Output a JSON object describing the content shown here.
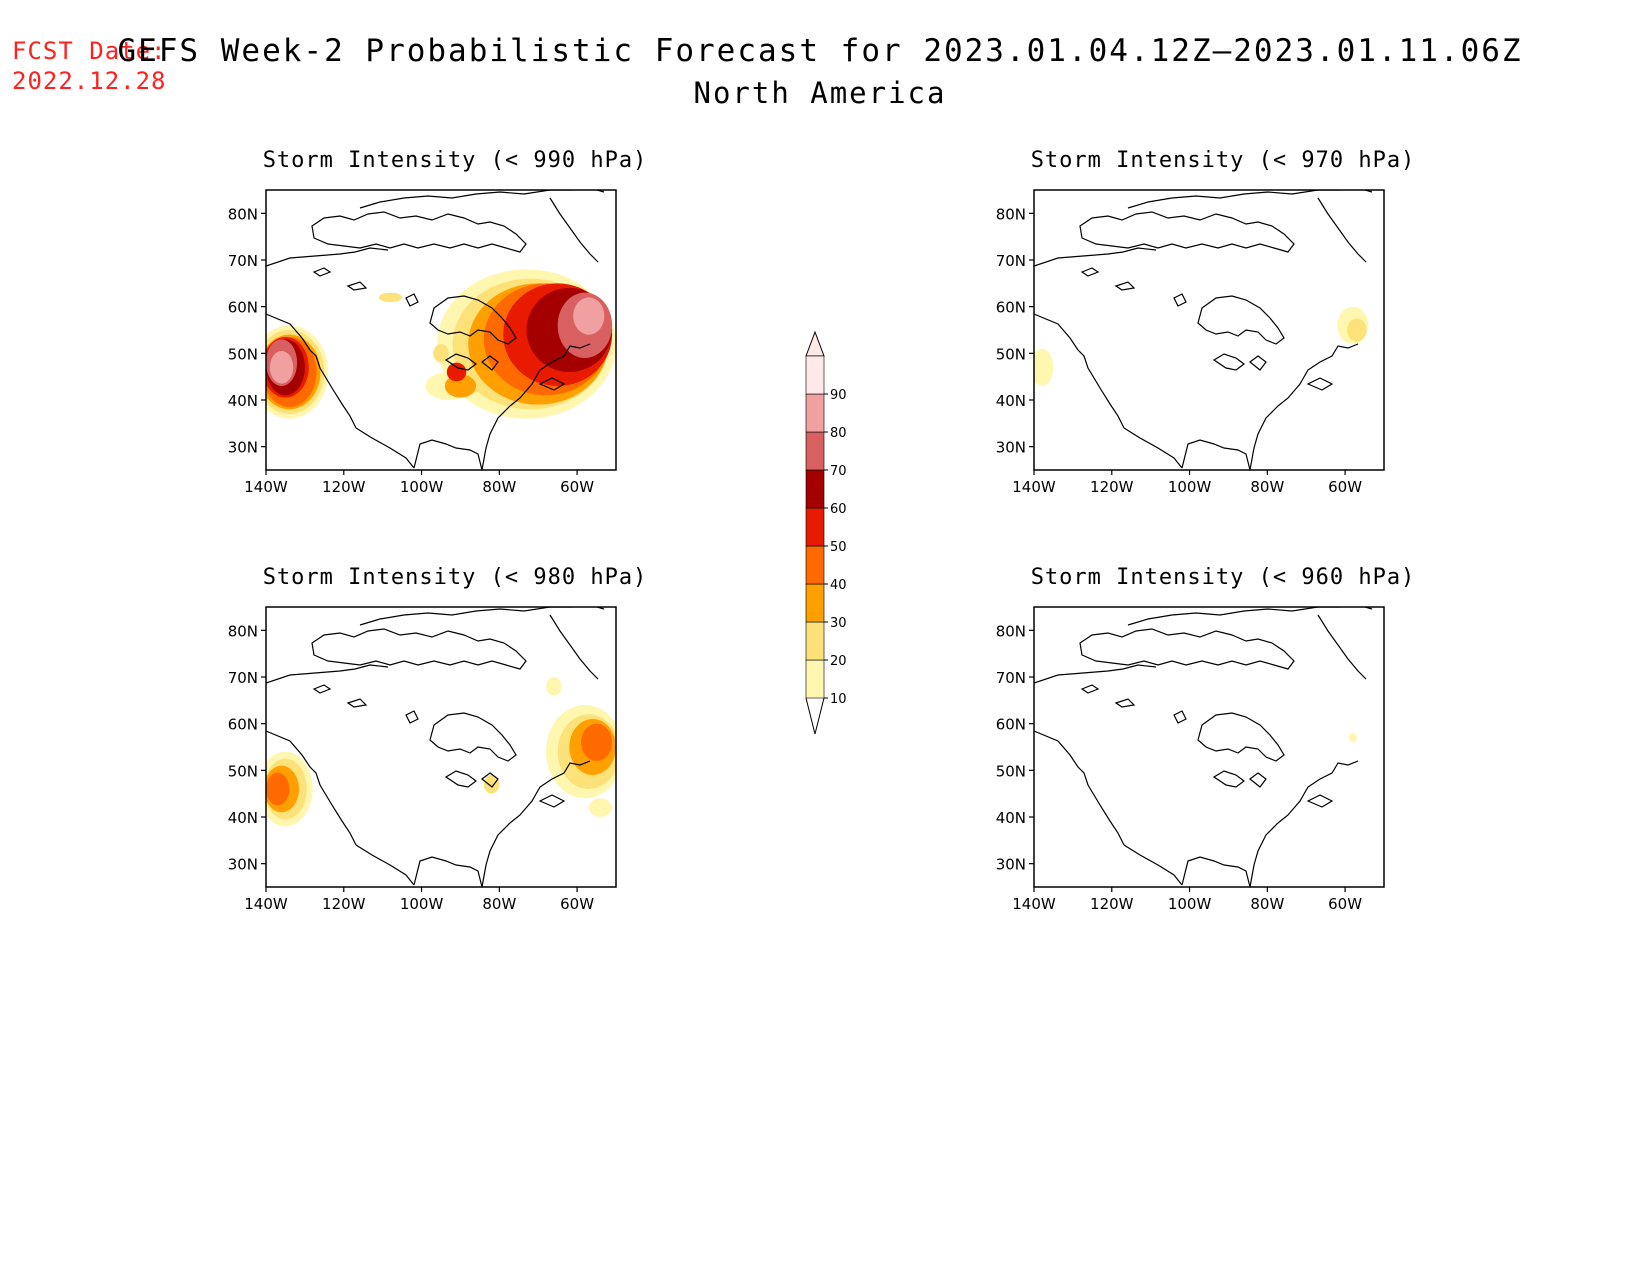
{
  "header": {
    "fcst_label": "FCST Date:",
    "fcst_date": "2022.12.28",
    "title": "GEFS Week-2 Probabilistic Forecast for 2023.01.04.12Z–2023.01.11.06Z",
    "region": "North America"
  },
  "panels": [
    {
      "id": "p990",
      "title": "Storm Intensity (< 990 hPa)"
    },
    {
      "id": "p970",
      "title": "Storm Intensity (< 970 hPa)"
    },
    {
      "id": "p980",
      "title": "Storm Intensity (< 980 hPa)"
    },
    {
      "id": "p960",
      "title": "Storm Intensity (< 960 hPa)"
    }
  ],
  "axes": {
    "lat_labels": [
      "80N",
      "70N",
      "60N",
      "50N",
      "40N",
      "30N"
    ],
    "lon_labels": [
      "140W",
      "120W",
      "100W",
      "80W",
      "60W"
    ],
    "lat_range": [
      25,
      85
    ],
    "lon_range": [
      -140,
      -50
    ]
  },
  "colorbar": {
    "levels": [
      "10",
      "20",
      "30",
      "40",
      "50",
      "60",
      "70",
      "80",
      "90"
    ],
    "colors": [
      "#fff7b0",
      "#fde27a",
      "#ffa000",
      "#ff6a00",
      "#e81a00",
      "#a50000",
      "#d86060",
      "#f0a0a0",
      "#ffe8e8"
    ]
  }
}
